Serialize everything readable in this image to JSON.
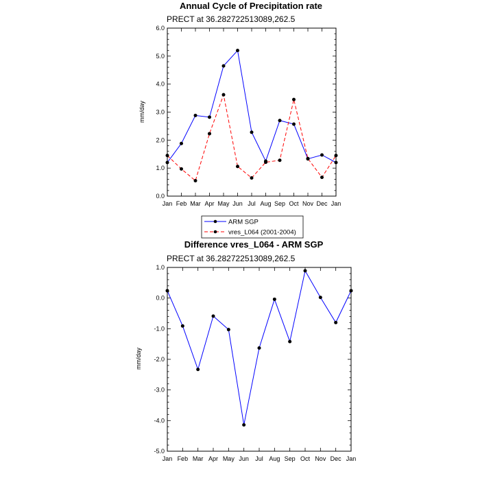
{
  "chart_data": [
    {
      "type": "line",
      "title": "Annual Cycle of Precipitation rate",
      "subtitle": "PRECT at 36.282722513089,262.5",
      "xlabel": "",
      "ylabel": "mm/day",
      "categories": [
        "Jan",
        "Feb",
        "Mar",
        "Apr",
        "May",
        "Jun",
        "Jul",
        "Aug",
        "Sep",
        "Oct",
        "Nov",
        "Dec",
        "Jan"
      ],
      "ylim": [
        0,
        6
      ],
      "yticks": [
        "0.0",
        "1.0",
        "2.0",
        "3.0",
        "4.0",
        "5.0",
        "6.0"
      ],
      "grid": false,
      "series": [
        {
          "name": "ARM SGP",
          "values": [
            1.2,
            1.88,
            2.88,
            2.82,
            4.65,
            5.2,
            2.28,
            1.25,
            2.7,
            2.57,
            1.33,
            1.47,
            1.2
          ],
          "color": "#0000ff",
          "dash": "solid"
        },
        {
          "name": "vres_L064 (2001-2004)",
          "values": [
            1.45,
            0.97,
            0.55,
            2.23,
            3.62,
            1.06,
            0.65,
            1.21,
            1.28,
            3.45,
            1.34,
            0.67,
            1.45
          ],
          "color": "#ff0000",
          "dash": "dashed"
        }
      ],
      "legend": "bottom"
    },
    {
      "type": "line",
      "title": "Difference vres_L064 - ARM SGP",
      "subtitle": "PRECT at 36.282722513089,262.5",
      "xlabel": "",
      "ylabel": "mm/day",
      "categories": [
        "Jan",
        "Feb",
        "Mar",
        "Apr",
        "May",
        "Jun",
        "Jul",
        "Aug",
        "Sep",
        "Oct",
        "Nov",
        "Dec",
        "Jan"
      ],
      "ylim": [
        -5,
        1
      ],
      "yticks": [
        "-5.0",
        "-4.0",
        "-3.0",
        "-2.0",
        "-1.0",
        "0.0",
        "1.0"
      ],
      "grid": false,
      "series": [
        {
          "values": [
            0.24,
            -0.91,
            -2.33,
            -0.59,
            -1.03,
            -4.14,
            -1.63,
            -0.04,
            -1.42,
            0.89,
            0.02,
            -0.8,
            0.24
          ],
          "color": "#0000ff",
          "dash": "solid"
        }
      ]
    }
  ]
}
